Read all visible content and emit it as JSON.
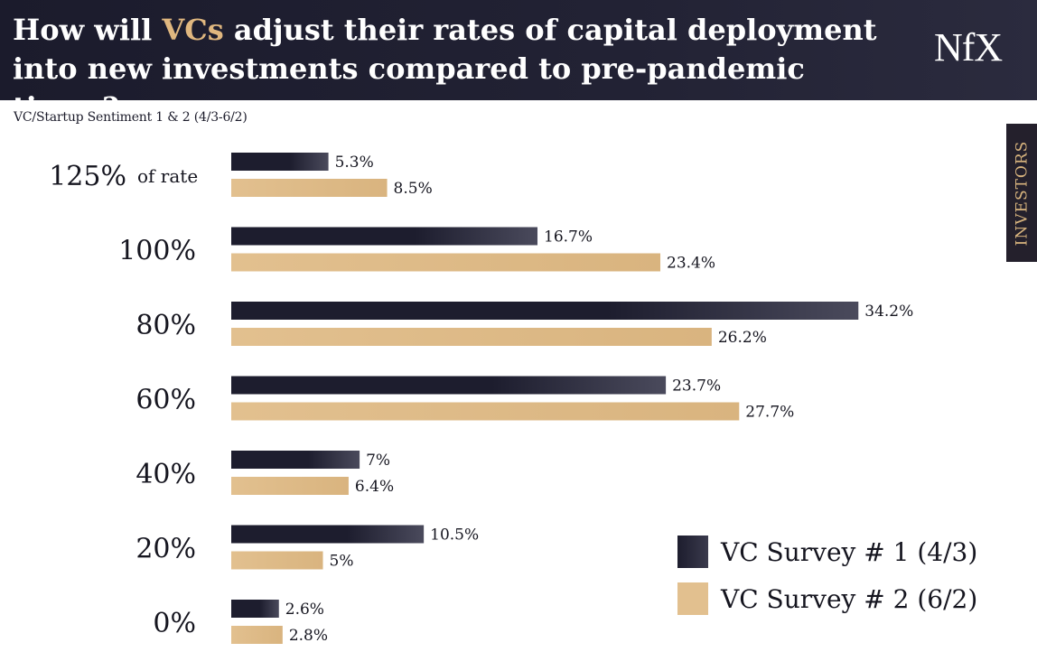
{
  "header": {
    "title_part1": "How will ",
    "title_highlight": "VCs",
    "title_part2": " adjust their rates of capital deployment into new investments compared to pre-pandemic times?",
    "logo": "NfX"
  },
  "side_tab": {
    "label": "INVESTORS"
  },
  "colors": {
    "header_bg": "#1f1f30",
    "highlight": "#e0b77f",
    "survey1": "#1d1d2e",
    "survey2": "#e2c08f"
  },
  "chart_data": {
    "type": "bar",
    "orientation": "horizontal",
    "title": "How will VCs adjust their rates of capital deployment into new investments compared to pre-pandemic times?",
    "subtitle": "VC/Startup Sentiment 1 & 2 (4/3-6/2)",
    "categories": [
      "125%",
      "100%",
      "80%",
      "60%",
      "40%",
      "20%",
      "0%"
    ],
    "category_suffix_first": "of rate",
    "series": [
      {
        "name": "VC Survey # 1 (4/3)",
        "values": [
          5.3,
          16.7,
          34.2,
          23.7,
          7,
          10.5,
          2.6
        ],
        "labels": [
          "5.3%",
          "16.7%",
          "34.2%",
          "23.7%",
          "7%",
          "10.5%",
          "2.6%"
        ]
      },
      {
        "name": "VC Survey # 2 (6/2)",
        "values": [
          8.5,
          23.4,
          26.2,
          27.7,
          6.4,
          5,
          2.8
        ],
        "labels": [
          "8.5%",
          "23.4%",
          "26.2%",
          "27.7%",
          "6.4%",
          "5%",
          "2.8%"
        ]
      }
    ],
    "xlabel": "",
    "ylabel": "",
    "legend": "bottom-right",
    "grid": false
  }
}
